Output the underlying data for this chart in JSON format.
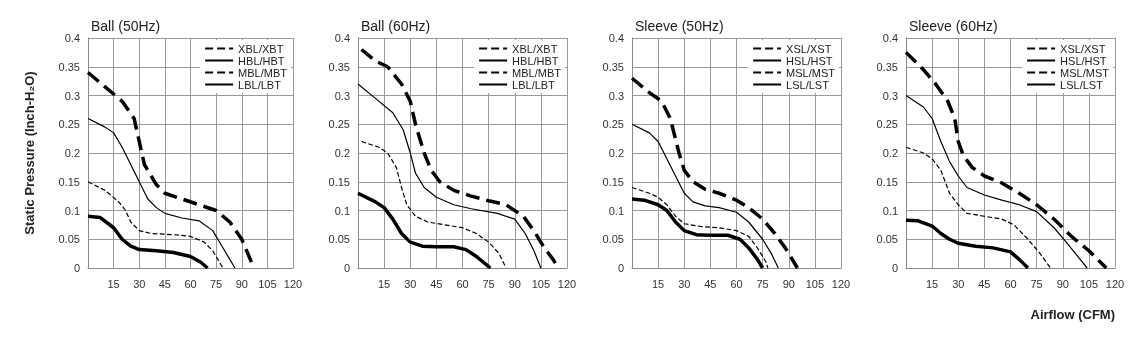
{
  "chart_data": [
    {
      "type": "line",
      "title": "Ball (50Hz)",
      "ylabel": "Static Pressure (Inch-H₂O)",
      "xlim": [
        0,
        120
      ],
      "ylim": [
        0,
        0.4
      ],
      "xticks": [
        15,
        30,
        45,
        60,
        75,
        90,
        105,
        120
      ],
      "yticks": [
        0,
        0.05,
        0.1,
        0.15,
        0.2,
        0.25,
        0.3,
        0.35,
        0.4
      ],
      "grid": true,
      "legend": "top right",
      "marker": "none",
      "series": [
        {
          "name": "XBL/XBT",
          "color": "#000000",
          "line_style": "dashed",
          "x": [
            0,
            10,
            20,
            27,
            30,
            33,
            40,
            45,
            55,
            65,
            75,
            83,
            90,
            95,
            97
          ],
          "values": [
            0.34,
            0.315,
            0.29,
            0.26,
            0.22,
            0.18,
            0.145,
            0.13,
            0.12,
            0.11,
            0.1,
            0.08,
            0.05,
            0.015,
            0
          ]
        },
        {
          "name": "HBL/HBT",
          "color": "#000000",
          "line_style": "solid",
          "x": [
            0,
            10,
            15,
            20,
            25,
            30,
            35,
            40,
            45,
            55,
            65,
            73,
            78,
            83,
            86
          ],
          "values": [
            0.26,
            0.245,
            0.235,
            0.21,
            0.18,
            0.15,
            0.12,
            0.105,
            0.095,
            0.087,
            0.082,
            0.065,
            0.04,
            0.015,
            0
          ]
        },
        {
          "name": "MBL/MBT",
          "color": "#000000",
          "line_style": "dashed",
          "x": [
            0,
            10,
            18,
            22,
            25,
            30,
            37,
            50,
            60,
            68,
            73,
            77,
            79
          ],
          "values": [
            0.15,
            0.135,
            0.115,
            0.1,
            0.08,
            0.065,
            0.06,
            0.058,
            0.055,
            0.045,
            0.03,
            0.01,
            0
          ]
        },
        {
          "name": "LBL/LBT",
          "color": "#000000",
          "line_style": "solid",
          "x": [
            0,
            7,
            15,
            20,
            25,
            30,
            40,
            50,
            60,
            66,
            70
          ],
          "values": [
            0.09,
            0.088,
            0.07,
            0.05,
            0.038,
            0.032,
            0.03,
            0.027,
            0.02,
            0.01,
            0
          ]
        }
      ]
    },
    {
      "type": "line",
      "title": "Ball (60Hz)",
      "xlim": [
        0,
        120
      ],
      "ylim": [
        0,
        0.4
      ],
      "xticks": [
        15,
        30,
        45,
        60,
        75,
        90,
        105,
        120
      ],
      "yticks": [
        0,
        0.05,
        0.1,
        0.15,
        0.2,
        0.25,
        0.3,
        0.35,
        0.4
      ],
      "grid": true,
      "legend": "top right",
      "marker": "none",
      "series": [
        {
          "name": "XBL/XBT",
          "color": "#000000",
          "line_style": "dashed",
          "x": [
            2,
            10,
            17,
            25,
            30,
            33,
            38,
            42,
            47,
            55,
            65,
            75,
            85,
            95,
            102,
            107,
            112,
            115
          ],
          "values": [
            0.38,
            0.36,
            0.35,
            0.32,
            0.29,
            0.25,
            0.2,
            0.17,
            0.15,
            0.135,
            0.125,
            0.117,
            0.11,
            0.09,
            0.06,
            0.035,
            0.015,
            0
          ]
        },
        {
          "name": "HBL/HBT",
          "color": "#000000",
          "line_style": "solid",
          "x": [
            0,
            10,
            20,
            26,
            30,
            33,
            38,
            45,
            55,
            65,
            80,
            90,
            96,
            101,
            105
          ],
          "values": [
            0.32,
            0.295,
            0.27,
            0.24,
            0.2,
            0.165,
            0.14,
            0.123,
            0.11,
            0.103,
            0.095,
            0.085,
            0.06,
            0.03,
            0
          ]
        },
        {
          "name": "MBL/MBT",
          "color": "#000000",
          "line_style": "dashed",
          "x": [
            2,
            12,
            17,
            22,
            25,
            28,
            33,
            40,
            50,
            60,
            68,
            75,
            81,
            85
          ],
          "values": [
            0.22,
            0.21,
            0.2,
            0.175,
            0.14,
            0.11,
            0.09,
            0.08,
            0.075,
            0.07,
            0.06,
            0.045,
            0.025,
            0
          ]
        },
        {
          "name": "LBL/LBT",
          "color": "#000000",
          "line_style": "solid",
          "x": [
            0,
            10,
            15,
            20,
            25,
            30,
            37,
            45,
            55,
            62,
            68,
            74,
            76
          ],
          "values": [
            0.13,
            0.115,
            0.105,
            0.085,
            0.06,
            0.045,
            0.038,
            0.037,
            0.037,
            0.032,
            0.02,
            0.005,
            0
          ]
        }
      ]
    },
    {
      "type": "line",
      "title": "Sleeve (50Hz)",
      "xlim": [
        0,
        120
      ],
      "ylim": [
        0,
        0.4
      ],
      "xticks": [
        15,
        30,
        45,
        60,
        75,
        90,
        105,
        120
      ],
      "yticks": [
        0,
        0.05,
        0.1,
        0.15,
        0.2,
        0.25,
        0.3,
        0.35,
        0.4
      ],
      "grid": true,
      "legend": "top right",
      "marker": "none",
      "series": [
        {
          "name": "XSL/XST",
          "color": "#000000",
          "line_style": "dashed",
          "x": [
            0,
            10,
            17,
            22,
            27,
            30,
            35,
            42,
            50,
            60,
            67,
            75,
            82,
            88,
            95
          ],
          "values": [
            0.33,
            0.305,
            0.29,
            0.26,
            0.2,
            0.17,
            0.15,
            0.137,
            0.13,
            0.118,
            0.105,
            0.085,
            0.06,
            0.035,
            0
          ]
        },
        {
          "name": "HSL/HST",
          "color": "#000000",
          "line_style": "solid",
          "x": [
            0,
            10,
            15,
            20,
            25,
            30,
            35,
            42,
            50,
            60,
            67,
            75,
            80,
            84
          ],
          "values": [
            0.25,
            0.235,
            0.22,
            0.19,
            0.16,
            0.13,
            0.115,
            0.108,
            0.105,
            0.097,
            0.08,
            0.05,
            0.025,
            0
          ]
        },
        {
          "name": "MSL/MST",
          "color": "#000000",
          "line_style": "dashed",
          "x": [
            0,
            10,
            15,
            20,
            25,
            30,
            40,
            50,
            60,
            67,
            72,
            77,
            78
          ],
          "values": [
            0.14,
            0.13,
            0.123,
            0.11,
            0.09,
            0.077,
            0.072,
            0.07,
            0.065,
            0.055,
            0.035,
            0.01,
            0
          ]
        },
        {
          "name": "LSL/LST",
          "color": "#000000",
          "line_style": "solid",
          "x": [
            0,
            7,
            15,
            20,
            25,
            30,
            37,
            45,
            55,
            62,
            67,
            72,
            75
          ],
          "values": [
            0.12,
            0.118,
            0.11,
            0.1,
            0.08,
            0.065,
            0.058,
            0.057,
            0.057,
            0.05,
            0.035,
            0.015,
            0
          ]
        }
      ]
    },
    {
      "type": "line",
      "title": "Sleeve (60Hz)",
      "xlabel": "Airflow (CFM)",
      "xlim": [
        0,
        120
      ],
      "ylim": [
        0,
        0.4
      ],
      "xticks": [
        15,
        30,
        45,
        60,
        75,
        90,
        105,
        120
      ],
      "yticks": [
        0,
        0.05,
        0.1,
        0.15,
        0.2,
        0.25,
        0.3,
        0.35,
        0.4
      ],
      "grid": true,
      "legend": "top right",
      "marker": "none",
      "series": [
        {
          "name": "XSL/XST",
          "color": "#000000",
          "line_style": "dashed",
          "x": [
            0,
            10,
            17,
            24,
            28,
            30,
            33,
            38,
            45,
            55,
            65,
            75,
            85,
            95,
            105,
            115
          ],
          "values": [
            0.375,
            0.345,
            0.32,
            0.29,
            0.26,
            0.22,
            0.195,
            0.175,
            0.16,
            0.148,
            0.13,
            0.11,
            0.085,
            0.055,
            0.03,
            0
          ]
        },
        {
          "name": "HSL/HST",
          "color": "#000000",
          "line_style": "solid",
          "x": [
            0,
            10,
            15,
            20,
            25,
            30,
            35,
            45,
            55,
            65,
            75,
            85,
            92,
            100,
            104
          ],
          "values": [
            0.3,
            0.28,
            0.26,
            0.22,
            0.185,
            0.16,
            0.14,
            0.127,
            0.118,
            0.11,
            0.098,
            0.07,
            0.045,
            0.015,
            0
          ]
        },
        {
          "name": "MSL/MST",
          "color": "#000000",
          "line_style": "dashed",
          "x": [
            0,
            10,
            15,
            20,
            25,
            30,
            35,
            45,
            55,
            62,
            70,
            77,
            83
          ],
          "values": [
            0.21,
            0.2,
            0.19,
            0.17,
            0.13,
            0.11,
            0.095,
            0.09,
            0.085,
            0.075,
            0.05,
            0.025,
            0
          ]
        },
        {
          "name": "LSL/LST",
          "color": "#000000",
          "line_style": "solid",
          "x": [
            0,
            7,
            15,
            20,
            25,
            30,
            40,
            50,
            60,
            65,
            70
          ],
          "values": [
            0.083,
            0.082,
            0.073,
            0.06,
            0.05,
            0.043,
            0.038,
            0.035,
            0.028,
            0.015,
            0
          ]
        }
      ]
    }
  ]
}
